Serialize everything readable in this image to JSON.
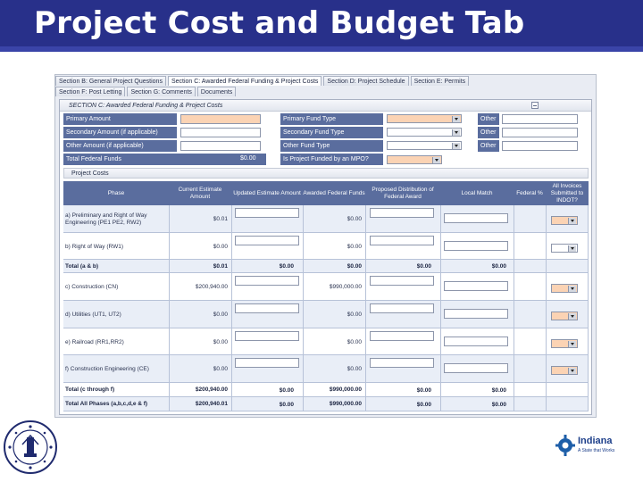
{
  "slide": {
    "title": "Project Cost and Budget Tab"
  },
  "tabs_row1": [
    "Section B: General Project Questions",
    "Section C: Awarded Federal Funding & Project Costs",
    "Section D: Project Schedule",
    "Section E: Permits"
  ],
  "tabs_row2": [
    "Section F: Post Letting",
    "Section G: Comments",
    "Documents"
  ],
  "section_c": {
    "title": "SECTION C: Awarded Federal Funding & Project Costs"
  },
  "funding": {
    "primary_amount": "Primary Amount",
    "secondary_amount": "Secondary Amount (if applicable)",
    "other_amount": "Other Amount (if applicable)",
    "total_federal_funds": "Total Federal Funds",
    "total_federal_value": "$0.00",
    "primary_fund_type": "Primary Fund Type",
    "secondary_fund_type": "Secondary Fund Type",
    "other_fund_type": "Other Fund Type",
    "mpo_question": "Is Project Funded by an MPO?",
    "other_label": "Other"
  },
  "project_costs": {
    "title": "Project Costs",
    "headers": {
      "phase": "Phase",
      "current_estimate": "Current Estimate Amount",
      "updated_estimate": "Updated Estimate Amount",
      "awarded_federal": "Awarded Federal Funds",
      "proposed_distribution": "Proposed Distribution of Federal Award",
      "local_match": "Local Match",
      "federal_pct": "Federal %",
      "all_invoices": "All Invoices Submitted to INDOT?"
    },
    "rows": [
      {
        "phase": "a) Preliminary and Right of Way Engineering (PE1 PE2, RW2)",
        "current": "$0.01",
        "awarded": "$0.00"
      },
      {
        "phase": "b) Right of Way (RW1)",
        "current": "$0.00",
        "awarded": "$0.00"
      },
      {
        "phase": "Total (a & b)",
        "current": "$0.01",
        "updated": "$0.00",
        "awarded": "$0.00",
        "proposed": "$0.00",
        "local": "$0.00"
      },
      {
        "phase": "c) Construction (CN)",
        "current": "$200,940.00",
        "awarded": "$990,000.00"
      },
      {
        "phase": "d) Utilities (UT1, UT2)",
        "current": "$0.00",
        "awarded": "$0.00"
      },
      {
        "phase": "e) Railroad (RR1,RR2)",
        "current": "$0.00",
        "awarded": "$0.00"
      },
      {
        "phase": "f) Construction Engineering (CE)",
        "current": "$0.00",
        "awarded": "$0.00"
      },
      {
        "phase": "Total (c through f)",
        "current": "$200,940.00",
        "updated": "$0.00",
        "awarded": "$990,000.00",
        "proposed": "$0.00",
        "local": "$0.00"
      },
      {
        "phase": "Total All Phases (a,b,c,d,e & f)",
        "current": "$200,940.01",
        "updated": "$0.00",
        "awarded": "$990,000.00",
        "proposed": "$0.00",
        "local": "$0.00"
      }
    ]
  },
  "branding": {
    "logo_text": "Indiana",
    "logo_tagline": "A State that Works"
  },
  "colors": {
    "title_bar": "#28308a",
    "label_bg": "#5a6d9e",
    "required_field": "#fbd3b4"
  }
}
